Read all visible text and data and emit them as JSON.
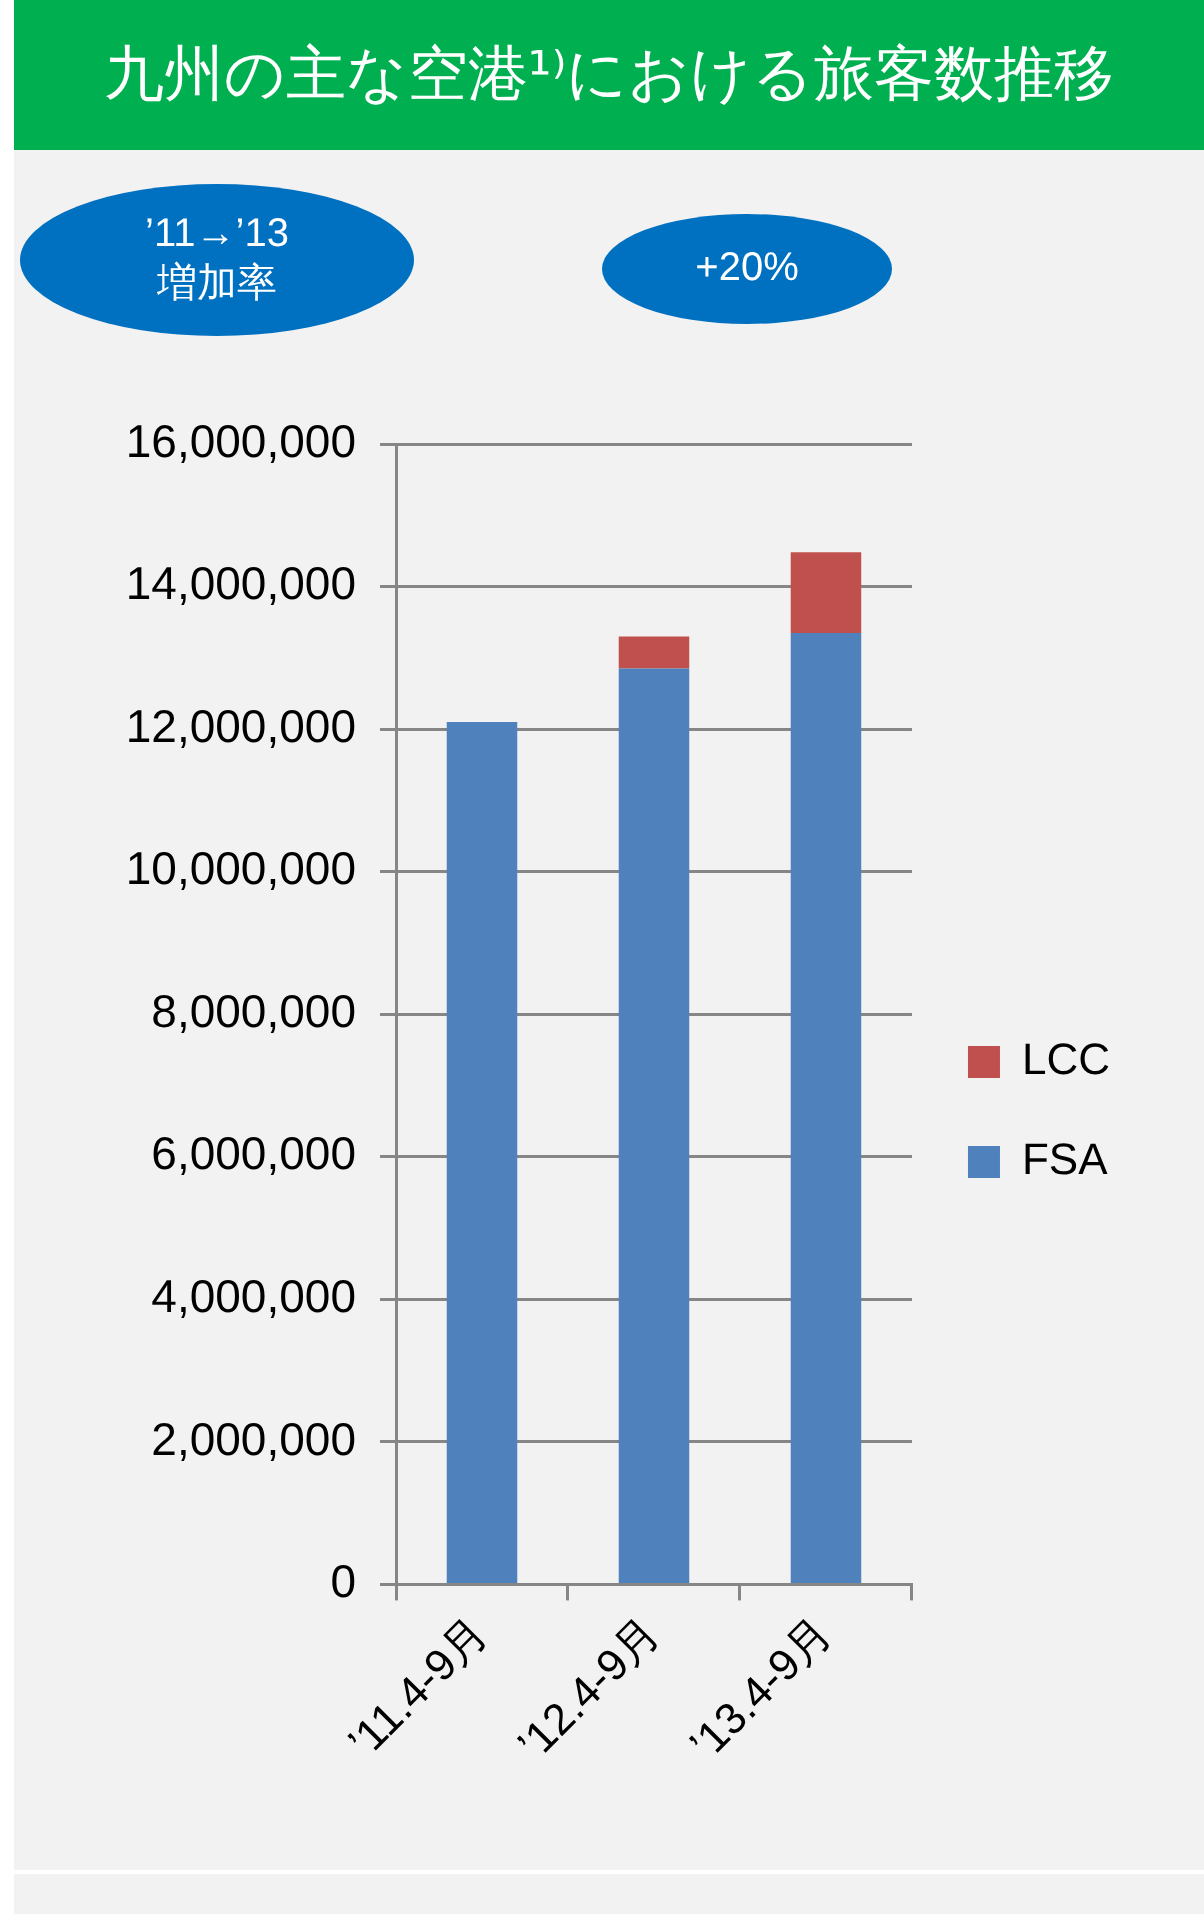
{
  "chart_data": {
    "type": "bar",
    "title": "九州の主な空港¹⁾における旅客数推移",
    "annotations": [
      "’11→’13\n増加率",
      "+20%"
    ],
    "categories": [
      "’11.4-9月",
      "’12.4-9月",
      "’13.4-9月"
    ],
    "stacked": true,
    "series": [
      {
        "name": "FSA",
        "color": "#4f81bd",
        "values": [
          12100000,
          12850000,
          13350000
        ]
      },
      {
        "name": "LCC",
        "color": "#c0504d",
        "values": [
          null,
          450000,
          1130000
        ]
      }
    ],
    "ylim": [
      0,
      16000000
    ],
    "yticks": [
      0,
      {
        "value": 2000000,
        "label": "2,000,000"
      },
      {
        "value": 4000000,
        "label": "4,000,000"
      },
      {
        "value": 6000000,
        "label": "6,000,000"
      },
      {
        "value": 8000000,
        "label": "8,000,000"
      },
      {
        "value": 10000000,
        "label": "10,000,000"
      },
      {
        "value": 12000000,
        "label": "12,000,000"
      },
      {
        "value": 14000000,
        "label": "14,000,000"
      },
      {
        "value": 16000000,
        "label": "16,000,000"
      }
    ],
    "grid": "y",
    "legend": "right"
  }
}
